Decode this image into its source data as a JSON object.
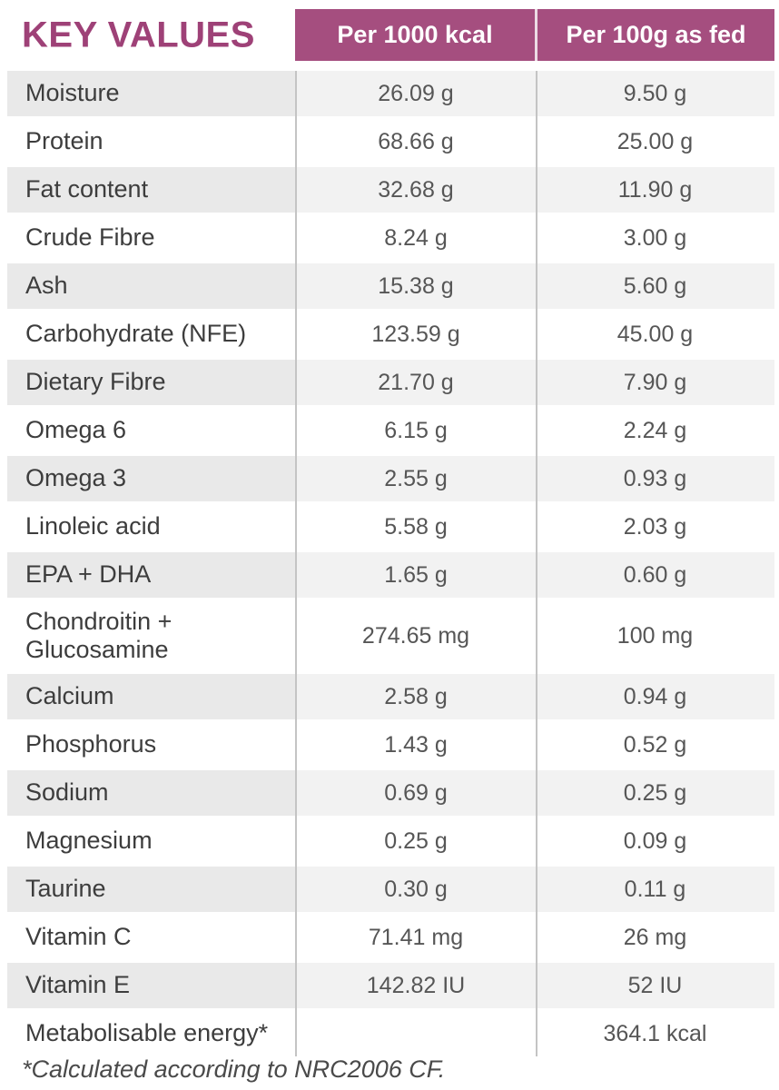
{
  "chart_data": {
    "type": "table",
    "title": "KEY VALUES",
    "columns": [
      "Per 1000 kcal",
      "Per 100g as fed"
    ],
    "rows": [
      {
        "label": "Moisture",
        "values": [
          "26.09 g",
          "9.50 g"
        ]
      },
      {
        "label": "Protein",
        "values": [
          "68.66 g",
          "25.00 g"
        ]
      },
      {
        "label": "Fat content",
        "values": [
          "32.68 g",
          "11.90 g"
        ]
      },
      {
        "label": "Crude Fibre",
        "values": [
          "8.24 g",
          "3.00 g"
        ]
      },
      {
        "label": "Ash",
        "values": [
          "15.38 g",
          "5.60 g"
        ]
      },
      {
        "label": "Carbohydrate (NFE)",
        "values": [
          "123.59 g",
          "45.00 g"
        ]
      },
      {
        "label": "Dietary Fibre",
        "values": [
          "21.70 g",
          "7.90 g"
        ]
      },
      {
        "label": "Omega 6",
        "values": [
          "6.15 g",
          "2.24 g"
        ]
      },
      {
        "label": "Omega 3",
        "values": [
          "2.55 g",
          "0.93 g"
        ]
      },
      {
        "label": "Linoleic acid",
        "values": [
          "5.58 g",
          "2.03 g"
        ]
      },
      {
        "label": "EPA + DHA",
        "values": [
          "1.65 g",
          "0.60 g"
        ]
      },
      {
        "label": "Chondroitin +\nGlucosamine",
        "values": [
          "274.65 mg",
          "100 mg"
        ]
      },
      {
        "label": "Calcium",
        "values": [
          "2.58 g",
          "0.94 g"
        ]
      },
      {
        "label": "Phosphorus",
        "values": [
          "1.43 g",
          "0.52 g"
        ]
      },
      {
        "label": "Sodium",
        "values": [
          "0.69 g",
          "0.25 g"
        ]
      },
      {
        "label": "Magnesium",
        "values": [
          "0.25 g",
          "0.09 g"
        ]
      },
      {
        "label": "Taurine",
        "values": [
          "0.30 g",
          "0.11 g"
        ]
      },
      {
        "label": "Vitamin C",
        "values": [
          "71.41 mg",
          "26 mg"
        ]
      },
      {
        "label": "Vitamin E",
        "values": [
          "142.82 IU",
          "52 IU"
        ]
      },
      {
        "label": "Metabolisable energy*",
        "values": [
          "",
          "364.1 kcal"
        ]
      }
    ],
    "footnote": "*Calculated according to NRC2006 CF."
  },
  "colors": {
    "header_bg": "#a54e7f",
    "title_text": "#9e4177",
    "header_text": "#ffffff",
    "shaded_row_label_bg": "#e9e9e9",
    "shaded_row_value_bg": "#f2f2f2",
    "divider": "#c4c4c4"
  }
}
